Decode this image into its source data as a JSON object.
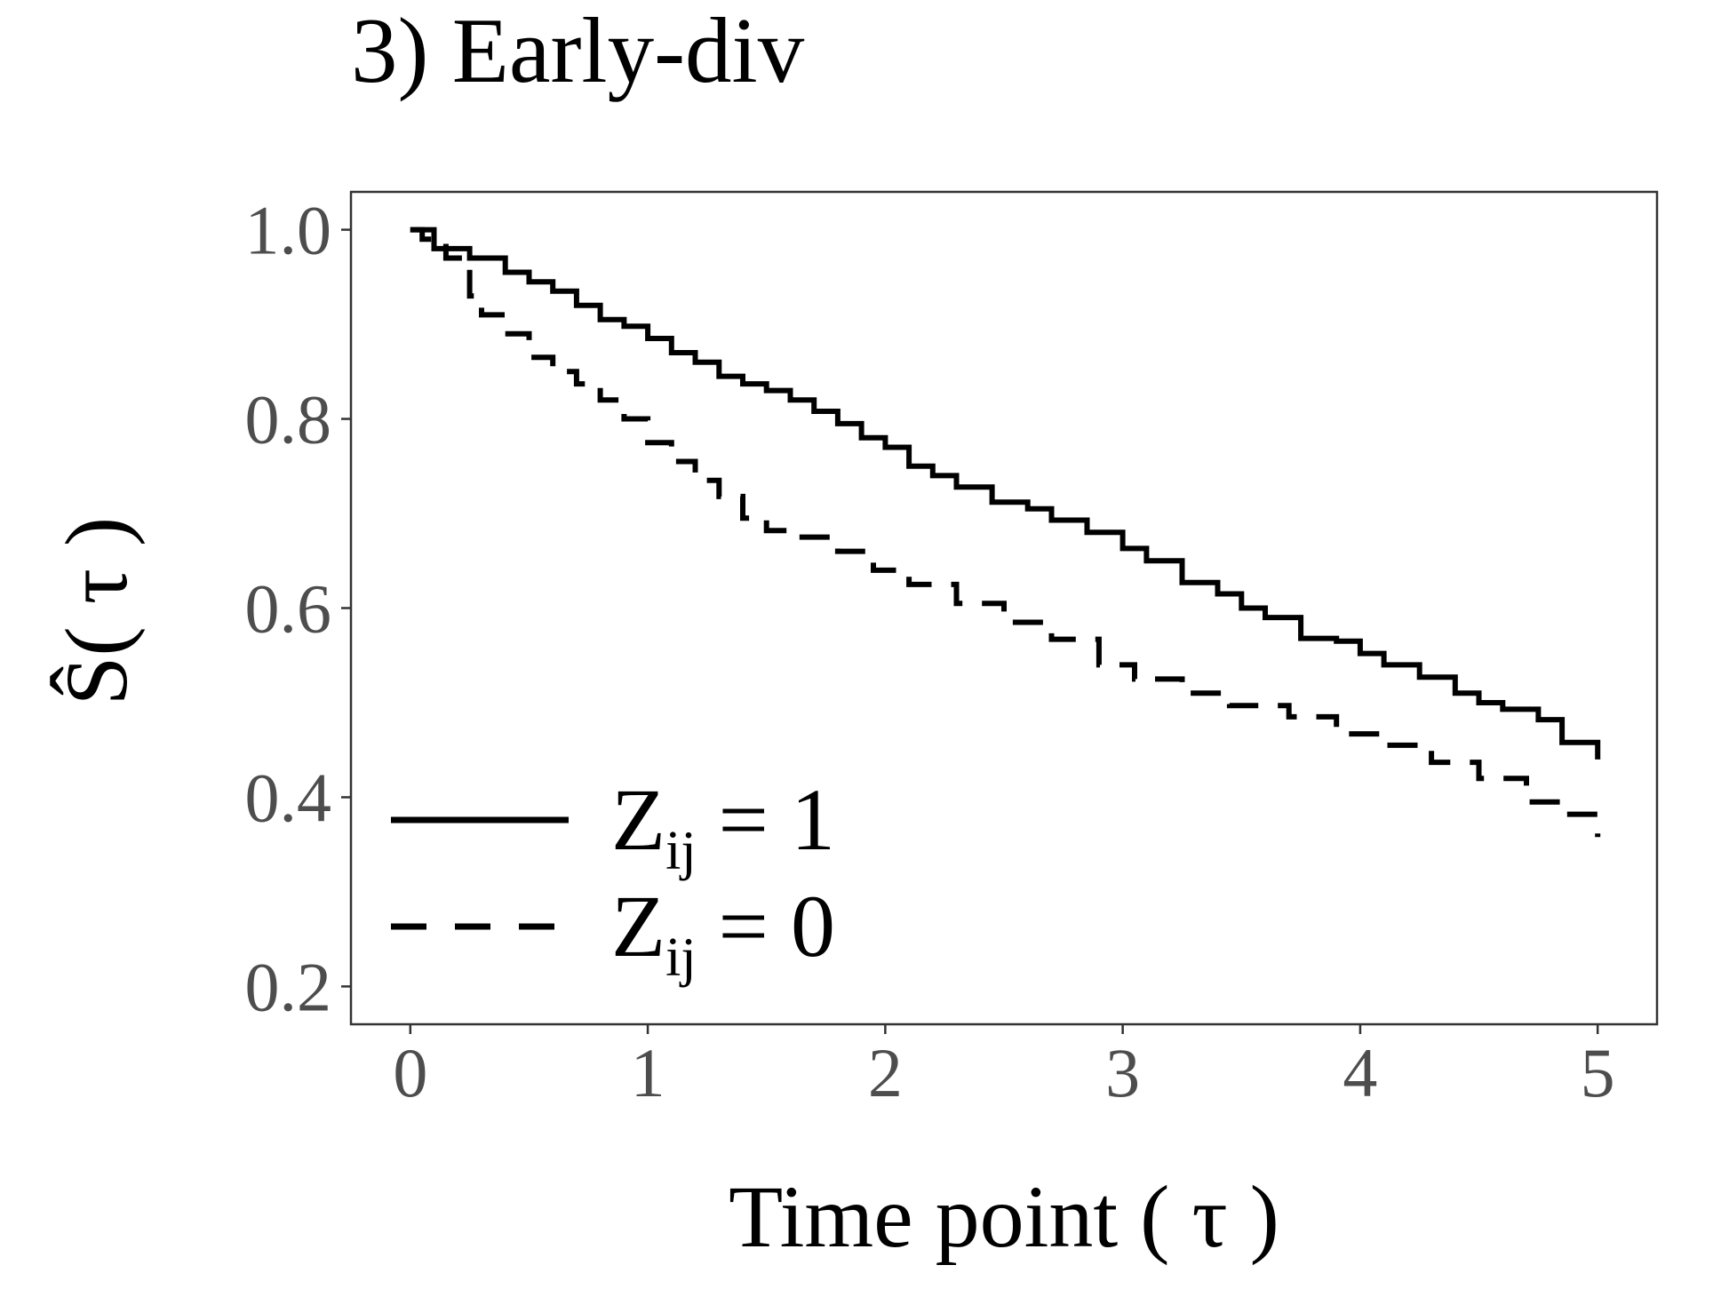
{
  "chart_data": {
    "type": "line",
    "title": "3) Early-div",
    "xlabel": "Time point ( τ )",
    "ylabel": "Ŝ( τ )",
    "xlim": [
      -0.25,
      5.25
    ],
    "ylim": [
      0.16,
      1.04
    ],
    "x_ticks": [
      "0",
      "1",
      "2",
      "3",
      "4",
      "5"
    ],
    "y_ticks": [
      "0.2",
      "0.4",
      "0.6",
      "0.8",
      "1.0"
    ],
    "grid": false,
    "legend_position": "bottom-left",
    "series": [
      {
        "name": "Zij = 1",
        "line_style": "solid",
        "color": "#000000",
        "points": [
          [
            0.0,
            1.0
          ],
          [
            0.1,
            0.98
          ],
          [
            0.25,
            0.97
          ],
          [
            0.4,
            0.955
          ],
          [
            0.5,
            0.945
          ],
          [
            0.6,
            0.935
          ],
          [
            0.7,
            0.92
          ],
          [
            0.8,
            0.905
          ],
          [
            0.9,
            0.898
          ],
          [
            1.0,
            0.885
          ],
          [
            1.1,
            0.87
          ],
          [
            1.2,
            0.86
          ],
          [
            1.3,
            0.845
          ],
          [
            1.4,
            0.837
          ],
          [
            1.5,
            0.83
          ],
          [
            1.6,
            0.82
          ],
          [
            1.7,
            0.808
          ],
          [
            1.8,
            0.795
          ],
          [
            1.9,
            0.78
          ],
          [
            2.0,
            0.77
          ],
          [
            2.1,
            0.75
          ],
          [
            2.2,
            0.74
          ],
          [
            2.3,
            0.728
          ],
          [
            2.45,
            0.712
          ],
          [
            2.6,
            0.705
          ],
          [
            2.7,
            0.693
          ],
          [
            2.85,
            0.68
          ],
          [
            3.0,
            0.663
          ],
          [
            3.1,
            0.65
          ],
          [
            3.25,
            0.627
          ],
          [
            3.4,
            0.615
          ],
          [
            3.5,
            0.6
          ],
          [
            3.6,
            0.59
          ],
          [
            3.75,
            0.568
          ],
          [
            3.9,
            0.565
          ],
          [
            4.0,
            0.552
          ],
          [
            4.1,
            0.54
          ],
          [
            4.25,
            0.527
          ],
          [
            4.4,
            0.51
          ],
          [
            4.5,
            0.5
          ],
          [
            4.6,
            0.493
          ],
          [
            4.75,
            0.482
          ],
          [
            4.85,
            0.458
          ],
          [
            5.0,
            0.44
          ]
        ]
      },
      {
        "name": "Zij = 0",
        "line_style": "dashed",
        "color": "#000000",
        "points": [
          [
            0.0,
            1.0
          ],
          [
            0.05,
            0.99
          ],
          [
            0.15,
            0.97
          ],
          [
            0.25,
            0.93
          ],
          [
            0.3,
            0.91
          ],
          [
            0.4,
            0.89
          ],
          [
            0.5,
            0.865
          ],
          [
            0.6,
            0.85
          ],
          [
            0.7,
            0.837
          ],
          [
            0.8,
            0.82
          ],
          [
            0.9,
            0.8
          ],
          [
            1.0,
            0.775
          ],
          [
            1.1,
            0.755
          ],
          [
            1.2,
            0.735
          ],
          [
            1.3,
            0.718
          ],
          [
            1.4,
            0.695
          ],
          [
            1.5,
            0.682
          ],
          [
            1.65,
            0.675
          ],
          [
            1.8,
            0.66
          ],
          [
            1.95,
            0.64
          ],
          [
            2.1,
            0.625
          ],
          [
            2.3,
            0.605
          ],
          [
            2.5,
            0.585
          ],
          [
            2.7,
            0.567
          ],
          [
            2.9,
            0.54
          ],
          [
            3.05,
            0.525
          ],
          [
            3.25,
            0.51
          ],
          [
            3.45,
            0.497
          ],
          [
            3.7,
            0.485
          ],
          [
            3.9,
            0.467
          ],
          [
            4.1,
            0.455
          ],
          [
            4.3,
            0.437
          ],
          [
            4.5,
            0.42
          ],
          [
            4.7,
            0.395
          ],
          [
            4.85,
            0.382
          ],
          [
            5.0,
            0.358
          ]
        ]
      }
    ],
    "legend": {
      "entries": [
        {
          "main": "Z",
          "sub": "ij",
          "rest": " = 1",
          "line_style": "solid"
        },
        {
          "main": "Z",
          "sub": "ij",
          "rest": " = 0",
          "line_style": "dashed"
        }
      ]
    }
  }
}
